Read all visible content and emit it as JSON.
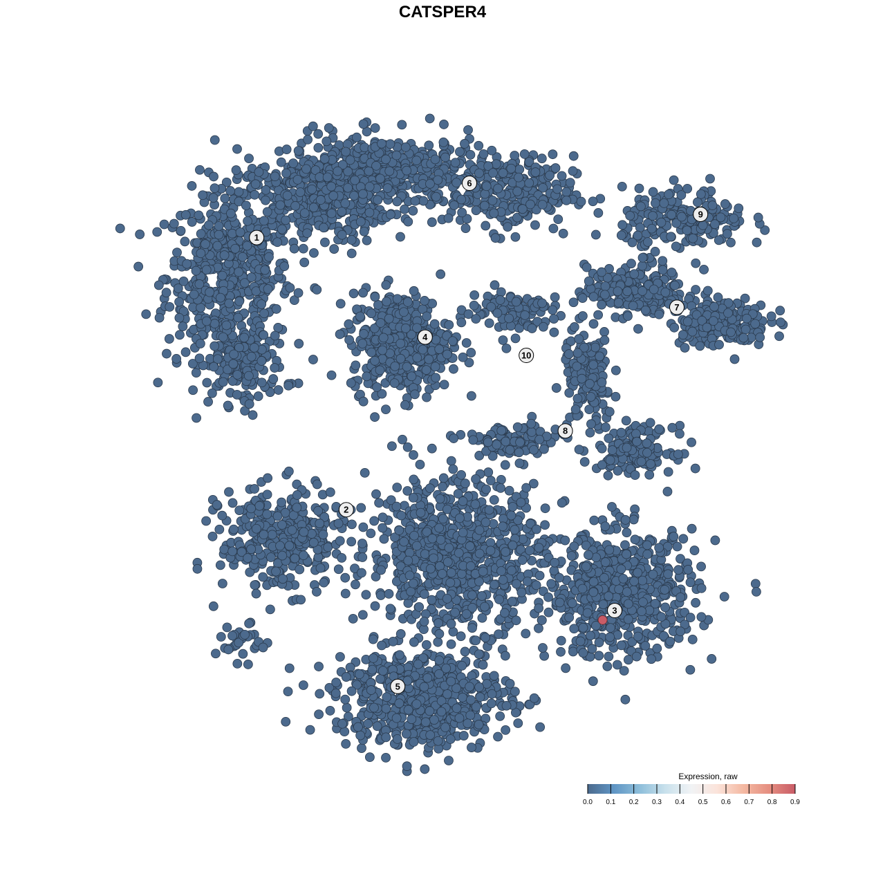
{
  "chart_data": {
    "type": "scatter",
    "title": "CATSPER4",
    "xlabel": "",
    "ylabel": "",
    "xlim": [
      -37,
      41
    ],
    "ylim": [
      -38,
      38
    ],
    "grid": false,
    "point_color_default": "#4C6A8D",
    "point_stroke": "#2B3B4E",
    "cluster_blobs": [
      {
        "cluster": "1",
        "center": [
          -25.8,
          20
        ],
        "spread": [
          5,
          6.7
        ],
        "n": 500,
        "expression": 0
      },
      {
        "cluster": "1",
        "center": [
          -15.8,
          29.2
        ],
        "spread": [
          6,
          3.5
        ],
        "n": 350,
        "expression": 0
      },
      {
        "cluster": "1",
        "center": [
          -24.2,
          9.2
        ],
        "spread": [
          3.5,
          3
        ],
        "n": 150,
        "expression": 0
      },
      {
        "cluster": "6",
        "center": [
          -6.7,
          32.5
        ],
        "spread": [
          8,
          3
        ],
        "n": 450,
        "expression": 0
      },
      {
        "cluster": "6",
        "center": [
          8.3,
          30
        ],
        "spread": [
          5,
          3
        ],
        "n": 250,
        "expression": 0
      },
      {
        "cluster": "4",
        "center": [
          -5,
          12.1
        ],
        "spread": [
          4,
          4
        ],
        "n": 450,
        "expression": 0
      },
      {
        "cluster": "10",
        "center": [
          8.3,
          15.8
        ],
        "spread": [
          4,
          2
        ],
        "n": 100,
        "expression": 0
      },
      {
        "cluster": "7",
        "center": [
          23.3,
          18.3
        ],
        "spread": [
          4,
          2
        ],
        "n": 200,
        "expression": 0
      },
      {
        "cluster": "7",
        "center": [
          33.3,
          14.6
        ],
        "spread": [
          4,
          2
        ],
        "n": 180,
        "expression": 0
      },
      {
        "cluster": "9",
        "center": [
          29.2,
          26.7
        ],
        "spread": [
          5,
          2.5
        ],
        "n": 200,
        "expression": 0
      },
      {
        "cluster": "8",
        "center": [
          17.5,
          7.5
        ],
        "spread": [
          2,
          4
        ],
        "n": 150,
        "expression": 0
      },
      {
        "cluster": "8",
        "center": [
          23.3,
          -0.8
        ],
        "spread": [
          3,
          1.8
        ],
        "n": 150,
        "expression": 0
      },
      {
        "cluster": "8",
        "center": [
          8.3,
          0
        ],
        "spread": [
          4,
          1.5
        ],
        "n": 100,
        "expression": 0
      },
      {
        "cluster": "2",
        "center": [
          -19.2,
          -11.7
        ],
        "spread": [
          5,
          4
        ],
        "n": 350,
        "expression": 0
      },
      {
        "cluster": "2",
        "center": [
          -24.2,
          -24.2
        ],
        "spread": [
          2,
          1.5
        ],
        "n": 30,
        "expression": 0
      },
      {
        "cluster": "center",
        "center": [
          1.7,
          -13.3
        ],
        "spread": [
          7,
          6
        ],
        "n": 800,
        "expression": 0
      },
      {
        "cluster": "3",
        "center": [
          21.7,
          -18.3
        ],
        "spread": [
          6,
          5
        ],
        "n": 600,
        "expression": 0
      },
      {
        "cluster": "5",
        "center": [
          -2.5,
          -30.8
        ],
        "spread": [
          7,
          4
        ],
        "n": 600,
        "expression": 0
      }
    ],
    "highlighted_points": [
      {
        "x": 19.3,
        "y": -21.4,
        "expression": 0.9,
        "color": "#C95C67"
      }
    ],
    "cluster_labels": [
      {
        "label": "1",
        "x": -22.4,
        "y": 24.7
      },
      {
        "label": "2",
        "x": -11.6,
        "y": -8.1
      },
      {
        "label": "3",
        "x": 20.75,
        "y": -20.25
      },
      {
        "label": "4",
        "x": -2.1,
        "y": 12.7
      },
      {
        "label": "5",
        "x": -5.4,
        "y": -29.4
      },
      {
        "label": "6",
        "x": 3.25,
        "y": 31.25
      },
      {
        "label": "7",
        "x": 28.25,
        "y": 16.3
      },
      {
        "label": "8",
        "x": 14.8,
        "y": 1.4
      },
      {
        "label": "9",
        "x": 31.1,
        "y": 27.5
      },
      {
        "label": "10",
        "x": 10.1,
        "y": 10.5
      }
    ],
    "legend": {
      "title": "Expression, raw",
      "placement": "bottom-right",
      "range": [
        0,
        0.9
      ],
      "ticks": [
        "0.0",
        "0.1",
        "0.2",
        "0.3",
        "0.4",
        "0.5",
        "0.6",
        "0.7",
        "0.8",
        "0.9"
      ],
      "colors": [
        "#4C6A8D",
        "#5F95C4",
        "#8DBEDA",
        "#C9E1EC",
        "#F1F3F5",
        "#FBE3DA",
        "#F4B9A2",
        "#E58E80",
        "#C95C67"
      ]
    }
  }
}
